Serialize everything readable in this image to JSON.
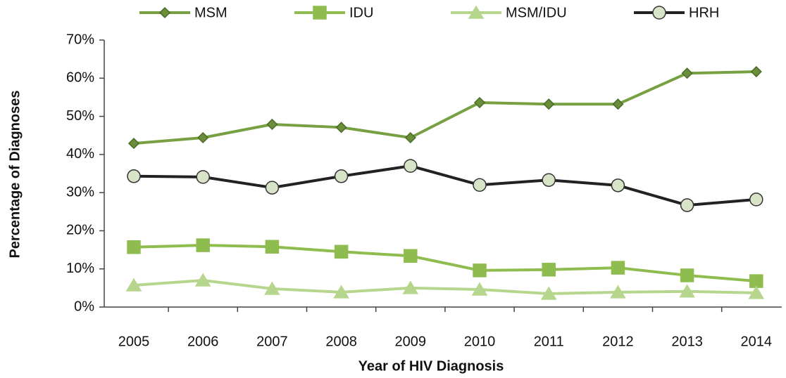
{
  "chart_data": {
    "type": "line",
    "x_label": "Year of HIV Diagnosis",
    "y_label": "Percentage of Diagnoses",
    "categories": [
      "2005",
      "2006",
      "2007",
      "2008",
      "2009",
      "2010",
      "2011",
      "2012",
      "2013",
      "2014"
    ],
    "ylim": [
      0,
      70
    ],
    "yticks": [
      {
        "value": 0,
        "label": "0%"
      },
      {
        "value": 10,
        "label": "10%"
      },
      {
        "value": 20,
        "label": "20%"
      },
      {
        "value": 30,
        "label": "30%"
      },
      {
        "value": 40,
        "label": "40%"
      },
      {
        "value": 50,
        "label": "50%"
      },
      {
        "value": 60,
        "label": "60%"
      },
      {
        "value": 70,
        "label": "70%"
      }
    ],
    "legend": "top",
    "series": [
      {
        "name": "MSM",
        "color": "#77a043",
        "marker": "diamond",
        "marker_fill": "#6b8e3a",
        "values": [
          42.9,
          44.4,
          47.9,
          47.1,
          44.4,
          53.6,
          53.2,
          53.2,
          61.3,
          61.7
        ]
      },
      {
        "name": "IDU",
        "color": "#8fbc4f",
        "marker": "square",
        "marker_fill": "#8fbc4f",
        "values": [
          15.7,
          16.2,
          15.8,
          14.5,
          13.4,
          9.6,
          9.8,
          10.3,
          8.3,
          6.8
        ]
      },
      {
        "name": "MSM/IDU",
        "color": "#b5d68c",
        "marker": "triangle",
        "marker_fill": "#b5d68c",
        "values": [
          5.7,
          7.0,
          4.8,
          3.9,
          5.0,
          4.6,
          3.5,
          3.9,
          4.1,
          3.7
        ]
      },
      {
        "name": "HRH",
        "color": "#222222",
        "marker": "circle",
        "marker_fill": "#d8e4c8",
        "values": [
          34.3,
          34.1,
          31.3,
          34.3,
          37.0,
          32.0,
          33.3,
          31.9,
          26.7,
          28.2
        ]
      }
    ]
  }
}
